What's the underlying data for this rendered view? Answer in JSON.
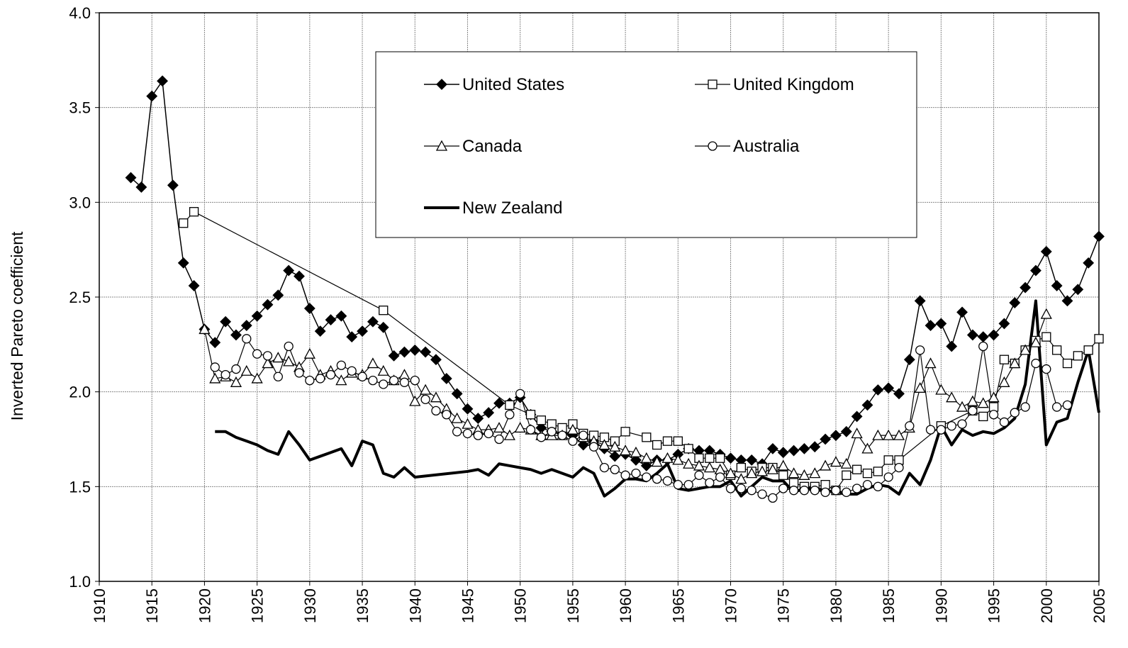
{
  "chart_data": {
    "type": "line",
    "ylabel": "Inverted Pareto coefficient",
    "xlim": [
      1910,
      2005
    ],
    "xticks": [
      1910,
      1915,
      1920,
      1925,
      1930,
      1935,
      1940,
      1945,
      1950,
      1955,
      1960,
      1965,
      1970,
      1975,
      1980,
      1985,
      1990,
      1995,
      2000,
      2005
    ],
    "ylim": [
      1,
      4
    ],
    "yticks": [
      {
        "value": 1,
        "label": "1.0"
      },
      1.5,
      {
        "value": 2,
        "label": "2.0"
      },
      2.5,
      {
        "value": 3,
        "label": "3.0"
      },
      3.5,
      {
        "value": 4,
        "label": "4.0"
      }
    ],
    "grid": true,
    "legend": "top",
    "series": [
      {
        "name": "United States",
        "color": "#000000",
        "marker": "diamond",
        "line_width": 1.5,
        "x": [
          1913,
          1914,
          1915,
          1916,
          1917,
          1918,
          1919,
          1920,
          1921,
          1922,
          1923,
          1924,
          1925,
          1926,
          1927,
          1928,
          1929,
          1930,
          1931,
          1932,
          1933,
          1934,
          1935,
          1936,
          1937,
          1938,
          1939,
          1940,
          1941,
          1942,
          1943,
          1944,
          1945,
          1946,
          1947,
          1948,
          1949,
          1950,
          1951,
          1952,
          1953,
          1954,
          1955,
          1956,
          1957,
          1958,
          1959,
          1960,
          1961,
          1962,
          1963,
          1964,
          1965,
          1966,
          1967,
          1968,
          1969,
          1970,
          1971,
          1972,
          1973,
          1974,
          1975,
          1976,
          1977,
          1978,
          1979,
          1980,
          1981,
          1982,
          1983,
          1984,
          1985,
          1986,
          1987,
          1988,
          1989,
          1990,
          1991,
          1992,
          1993,
          1994,
          1995,
          1996,
          1997,
          1998,
          1999,
          2000,
          2001,
          2002,
          2003,
          2004,
          2005
        ],
        "values": [
          3.13,
          3.08,
          3.56,
          3.64,
          3.09,
          2.68,
          2.56,
          2.33,
          2.26,
          2.37,
          2.3,
          2.35,
          2.4,
          2.46,
          2.51,
          2.64,
          2.61,
          2.44,
          2.32,
          2.38,
          2.4,
          2.29,
          2.32,
          2.37,
          2.34,
          2.19,
          2.21,
          2.22,
          2.21,
          2.17,
          2.07,
          1.99,
          1.91,
          1.86,
          1.89,
          1.94,
          1.94,
          1.97,
          1.88,
          1.81,
          1.79,
          1.78,
          1.77,
          1.72,
          1.74,
          1.7,
          1.66,
          1.67,
          1.64,
          1.61,
          1.64,
          1.64,
          1.67,
          1.7,
          1.69,
          1.69,
          1.67,
          1.65,
          1.64,
          1.64,
          1.62,
          1.7,
          1.68,
          1.69,
          1.7,
          1.71,
          1.75,
          1.77,
          1.79,
          1.87,
          1.93,
          2.01,
          2.02,
          1.99,
          2.17,
          2.48,
          2.35,
          2.36,
          2.24,
          2.42,
          2.3,
          2.29,
          2.3,
          2.36,
          2.47,
          2.55,
          2.64,
          2.74,
          2.56,
          2.48,
          2.54,
          2.68,
          2.82
        ]
      },
      {
        "name": "United Kingdom",
        "color": "#000000",
        "marker": "square",
        "line_width": 1.2,
        "x": [
          1918,
          1919,
          1937,
          1949,
          1951,
          1952,
          1953,
          1954,
          1955,
          1956,
          1957,
          1958,
          1959,
          1960,
          1962,
          1963,
          1964,
          1965,
          1966,
          1967,
          1968,
          1969,
          1970,
          1971,
          1972,
          1973,
          1974,
          1975,
          1976,
          1977,
          1978,
          1979,
          1980,
          1981,
          1982,
          1983,
          1984,
          1985,
          1986,
          1990,
          1993,
          1994,
          1995,
          1996,
          1997,
          1998,
          1999,
          2000,
          2001,
          2002,
          2003,
          2004,
          2005
        ],
        "values": [
          2.89,
          2.95,
          2.43,
          1.93,
          1.88,
          1.85,
          1.83,
          1.81,
          1.83,
          1.78,
          1.77,
          1.76,
          1.74,
          1.79,
          1.76,
          1.72,
          1.74,
          1.74,
          1.7,
          1.65,
          1.65,
          1.65,
          1.56,
          1.6,
          1.58,
          1.6,
          1.6,
          1.56,
          1.52,
          1.5,
          1.5,
          1.51,
          1.48,
          1.56,
          1.59,
          1.57,
          1.58,
          1.64,
          1.64,
          1.82,
          1.9,
          1.87,
          1.92,
          2.17,
          2.15,
          2.22,
          2.27,
          2.29,
          2.22,
          2.15,
          2.19,
          2.22,
          2.28
        ]
      },
      {
        "name": "Canada",
        "color": "#000000",
        "marker": "triangle",
        "line_width": 1.2,
        "x": [
          1920,
          1921,
          1922,
          1923,
          1924,
          1925,
          1926,
          1927,
          1928,
          1929,
          1930,
          1931,
          1932,
          1933,
          1934,
          1935,
          1936,
          1937,
          1938,
          1939,
          1940,
          1941,
          1942,
          1943,
          1944,
          1945,
          1946,
          1947,
          1948,
          1949,
          1950,
          1951,
          1952,
          1953,
          1954,
          1955,
          1956,
          1957,
          1958,
          1959,
          1960,
          1961,
          1962,
          1963,
          1964,
          1965,
          1966,
          1967,
          1968,
          1969,
          1970,
          1971,
          1972,
          1973,
          1974,
          1975,
          1976,
          1977,
          1978,
          1979,
          1980,
          1981,
          1982,
          1983,
          1984,
          1985,
          1986,
          1987,
          1988,
          1989,
          1990,
          1991,
          1992,
          1993,
          1994,
          1995,
          1996,
          1997,
          1998,
          1999,
          2000
        ],
        "values": [
          2.33,
          2.07,
          2.08,
          2.05,
          2.11,
          2.07,
          2.15,
          2.18,
          2.16,
          2.13,
          2.2,
          2.09,
          2.11,
          2.06,
          2.1,
          2.09,
          2.15,
          2.11,
          2.06,
          2.09,
          1.95,
          2.01,
          1.97,
          1.91,
          1.86,
          1.83,
          1.8,
          1.8,
          1.81,
          1.77,
          1.81,
          1.8,
          1.77,
          1.77,
          1.77,
          1.8,
          1.76,
          1.74,
          1.72,
          1.71,
          1.69,
          1.68,
          1.65,
          1.63,
          1.65,
          1.64,
          1.62,
          1.61,
          1.6,
          1.59,
          1.57,
          1.54,
          1.57,
          1.58,
          1.59,
          1.61,
          1.57,
          1.56,
          1.57,
          1.61,
          1.63,
          1.62,
          1.78,
          1.7,
          1.77,
          1.77,
          1.77,
          1.81,
          2.02,
          2.15,
          2.01,
          1.97,
          1.92,
          1.95,
          1.94,
          1.97,
          2.05,
          2.15,
          2.22,
          2.26,
          2.41
        ]
      },
      {
        "name": "Australia",
        "color": "#000000",
        "marker": "circle",
        "line_width": 1.2,
        "x": [
          1921,
          1922,
          1923,
          1924,
          1925,
          1926,
          1927,
          1928,
          1929,
          1930,
          1931,
          1932,
          1933,
          1934,
          1935,
          1936,
          1937,
          1938,
          1939,
          1940,
          1941,
          1942,
          1943,
          1944,
          1945,
          1946,
          1947,
          1948,
          1949,
          1950,
          1951,
          1952,
          1953,
          1954,
          1955,
          1956,
          1957,
          1958,
          1959,
          1960,
          1961,
          1962,
          1963,
          1964,
          1965,
          1966,
          1967,
          1968,
          1969,
          1970,
          1971,
          1972,
          1973,
          1974,
          1975,
          1976,
          1977,
          1978,
          1979,
          1980,
          1981,
          1982,
          1983,
          1984,
          1985,
          1986,
          1987,
          1988,
          1989,
          1990,
          1991,
          1992,
          1993,
          1994,
          1995,
          1996,
          1997,
          1998,
          1999,
          2000,
          2001,
          2002
        ],
        "values": [
          2.13,
          2.09,
          2.12,
          2.28,
          2.2,
          2.19,
          2.08,
          2.24,
          2.1,
          2.06,
          2.07,
          2.09,
          2.14,
          2.11,
          2.08,
          2.06,
          2.04,
          2.06,
          2.05,
          2.06,
          1.96,
          1.9,
          1.88,
          1.79,
          1.78,
          1.77,
          1.78,
          1.75,
          1.88,
          1.99,
          1.8,
          1.76,
          1.79,
          1.77,
          1.74,
          1.77,
          1.71,
          1.6,
          1.59,
          1.56,
          1.57,
          1.55,
          1.54,
          1.53,
          1.51,
          1.51,
          1.56,
          1.52,
          1.55,
          1.49,
          1.49,
          1.48,
          1.46,
          1.44,
          1.49,
          1.48,
          1.48,
          1.48,
          1.47,
          1.48,
          1.47,
          1.49,
          1.51,
          1.5,
          1.55,
          1.6,
          1.82,
          2.22,
          1.8,
          1.8,
          1.82,
          1.83,
          1.9,
          2.24,
          1.88,
          1.84,
          1.89,
          1.92,
          2.15,
          2.12,
          1.92,
          1.93
        ]
      },
      {
        "name": "New Zealand",
        "color": "#000000",
        "marker": "none",
        "line_width": 4,
        "x": [
          1921,
          1922,
          1923,
          1924,
          1925,
          1926,
          1927,
          1928,
          1929,
          1930,
          1931,
          1932,
          1933,
          1934,
          1935,
          1936,
          1937,
          1938,
          1939,
          1940,
          1945,
          1946,
          1947,
          1948,
          1949,
          1950,
          1951,
          1952,
          1953,
          1954,
          1955,
          1956,
          1957,
          1958,
          1959,
          1960,
          1961,
          1962,
          1963,
          1964,
          1965,
          1966,
          1967,
          1968,
          1969,
          1970,
          1971,
          1972,
          1973,
          1974,
          1975,
          1976,
          1977,
          1978,
          1979,
          1980,
          1981,
          1982,
          1983,
          1984,
          1985,
          1986,
          1987,
          1988,
          1989,
          1990,
          1991,
          1992,
          1993,
          1994,
          1995,
          1996,
          1997,
          1998,
          1999,
          2000,
          2001,
          2002,
          2003,
          2004,
          2005
        ],
        "values": [
          1.79,
          1.79,
          1.76,
          1.74,
          1.72,
          1.69,
          1.67,
          1.79,
          1.72,
          1.64,
          1.66,
          1.68,
          1.7,
          1.61,
          1.74,
          1.72,
          1.57,
          1.55,
          1.6,
          1.55,
          1.58,
          1.59,
          1.56,
          1.62,
          1.61,
          1.6,
          1.59,
          1.57,
          1.59,
          1.57,
          1.55,
          1.6,
          1.57,
          1.45,
          1.49,
          1.54,
          1.54,
          1.53,
          1.57,
          1.62,
          1.49,
          1.48,
          1.49,
          1.5,
          1.5,
          1.53,
          1.45,
          1.5,
          1.55,
          1.53,
          1.53,
          1.47,
          1.49,
          1.49,
          1.48,
          1.47,
          1.46,
          1.46,
          1.49,
          1.51,
          1.5,
          1.46,
          1.57,
          1.51,
          1.64,
          1.82,
          1.72,
          1.8,
          1.77,
          1.79,
          1.78,
          1.81,
          1.86,
          2.04,
          2.48,
          1.72,
          1.84,
          1.86,
          2.05,
          2.22,
          1.89
        ]
      }
    ]
  }
}
